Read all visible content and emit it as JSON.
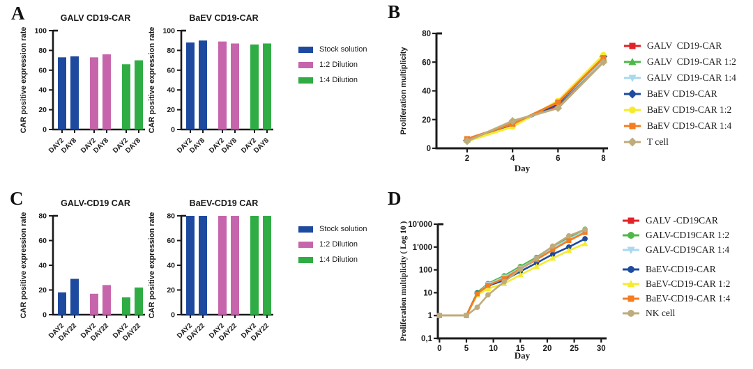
{
  "figure": {
    "background": "#ffffff",
    "axis_color": "#1a1a1a"
  },
  "panels": {
    "a": {
      "label": "A"
    },
    "b": {
      "label": "B"
    },
    "c": {
      "label": "C"
    },
    "d": {
      "label": "D"
    }
  },
  "legends": {
    "a": [
      {
        "label": "Stock solution",
        "color": "#1d4a9f"
      },
      {
        "label": "1:2 Dilution",
        "color": "#c765ac"
      },
      {
        "label": "1:4 Dilution",
        "color": "#2fad44"
      }
    ],
    "c": [
      {
        "label": "Stock solution",
        "color": "#1d4a9f"
      },
      {
        "label": "1:2 Dilution",
        "color": "#c765ac"
      },
      {
        "label": "1:4 Dilution",
        "color": "#2fad44"
      }
    ],
    "b": [
      {
        "label": "GALV  CD19-CAR",
        "color": "#e12228",
        "marker": "square"
      },
      {
        "label": "GALV  CD19-CAR 1:2",
        "color": "#4db848",
        "marker": "triangle-up"
      },
      {
        "label": "GALV  CD19-CAR 1:4",
        "color": "#a8d9ec",
        "marker": "triangle-down"
      },
      {
        "label": "BaEV CD19-CAR",
        "color": "#1d4ba0",
        "marker": "diamond"
      },
      {
        "label": "BaEV CD19-CAR 1:2",
        "color": "#f5eb2e",
        "marker": "circle"
      },
      {
        "label": "BaEV CD19-CAR 1:4",
        "color": "#f47d20",
        "marker": "square"
      },
      {
        "label": "T cell",
        "color": "#beac7d",
        "marker": "diamond"
      }
    ],
    "d": [
      {
        "label": "GALV -CD19CAR",
        "color": "#e12228",
        "marker": "square",
        "group_gap": false
      },
      {
        "label": "GALV-CD19CAR 1:2",
        "color": "#4db848",
        "marker": "circle",
        "group_gap": false
      },
      {
        "label": "GALV-CD19CAR 1:4",
        "color": "#a8d9ec",
        "marker": "triangle-down",
        "group_gap": false
      },
      {
        "label": "BaEV-CD19-CAR",
        "color": "#1d4ba0",
        "marker": "circle",
        "group_gap": true
      },
      {
        "label": "BaEV-CD19-CAR 1:2",
        "color": "#f5eb2e",
        "marker": "triangle-up",
        "group_gap": false
      },
      {
        "label": "BaEV-CD19-CAR 1:4",
        "color": "#f47d20",
        "marker": "square",
        "group_gap": false
      },
      {
        "label": "NK cell",
        "color": "#beac7d",
        "marker": "circle",
        "group_gap": false
      }
    ]
  },
  "chart_data": [
    {
      "id": "a1",
      "type": "bar",
      "title": "GALV CD19-CAR",
      "ylabel": "CAR positive expression rate",
      "ylim": [
        0,
        100
      ],
      "yticks": [
        0,
        20,
        40,
        60,
        80,
        100
      ],
      "categories": [
        "DAY2",
        "DAY8"
      ],
      "series": [
        {
          "name": "Stock solution",
          "color": "#1d4a9f",
          "values": [
            73,
            74
          ]
        },
        {
          "name": "1:2 Dilution",
          "color": "#c765ac",
          "values": [
            73,
            76
          ]
        },
        {
          "name": "1:4 Dilution",
          "color": "#2fad44",
          "values": [
            66,
            70
          ]
        }
      ]
    },
    {
      "id": "a2",
      "type": "bar",
      "title": "BaEV CD19-CAR",
      "ylabel": "CAR positive expression rate",
      "ylim": [
        0,
        100
      ],
      "yticks": [
        0,
        20,
        40,
        60,
        80,
        100
      ],
      "categories": [
        "DAY2",
        "DAY8"
      ],
      "series": [
        {
          "name": "Stock solution",
          "color": "#1d4a9f",
          "values": [
            88,
            90
          ]
        },
        {
          "name": "1:2 Dilution",
          "color": "#c765ac",
          "values": [
            89,
            87
          ]
        },
        {
          "name": "1:4 Dilution",
          "color": "#2fad44",
          "values": [
            86,
            87
          ]
        }
      ]
    },
    {
      "id": "b",
      "type": "line",
      "title": "",
      "xlabel": "Day",
      "ylabel": "Proliferation multiplicity",
      "xlim": [
        0.65,
        8.2
      ],
      "xticks": [
        2,
        4,
        6,
        8
      ],
      "ylim": [
        0,
        80
      ],
      "yticks": [
        0,
        20,
        40,
        60,
        80
      ],
      "x": [
        2,
        4,
        6,
        8
      ],
      "series": [
        {
          "name": "GALV  CD19-CAR",
          "color": "#e12228",
          "marker": "square",
          "values": [
            6.5,
            17,
            30,
            62
          ]
        },
        {
          "name": "GALV  CD19-CAR 1:2",
          "color": "#4db848",
          "marker": "triangle-up",
          "values": [
            6,
            17.5,
            31,
            63
          ]
        },
        {
          "name": "GALV  CD19-CAR 1:4",
          "color": "#a8d9ec",
          "marker": "triangle-down",
          "values": [
            6,
            17,
            31,
            62
          ]
        },
        {
          "name": "BaEV CD19-CAR",
          "color": "#1d4ba0",
          "marker": "diamond",
          "values": [
            5.5,
            16,
            31,
            64
          ]
        },
        {
          "name": "BaEV CD19-CAR 1:2",
          "color": "#f5eb2e",
          "marker": "circle",
          "values": [
            5,
            15,
            33,
            65
          ]
        },
        {
          "name": "BaEV CD19-CAR 1:4",
          "color": "#f47d20",
          "marker": "square",
          "values": [
            6.5,
            17,
            32,
            63
          ]
        },
        {
          "name": "T cell",
          "color": "#beac7d",
          "marker": "diamond",
          "values": [
            5,
            19,
            28,
            60
          ]
        }
      ]
    },
    {
      "id": "c1",
      "type": "bar",
      "title": "GALV-CD19 CAR",
      "ylabel": "CAR positive expression rate",
      "ylim": [
        0,
        80
      ],
      "yticks": [
        0,
        20,
        40,
        60,
        80
      ],
      "categories": [
        "DAY2",
        "DAY22"
      ],
      "series": [
        {
          "name": "Stock solution",
          "color": "#1d4a9f",
          "values": [
            18,
            29
          ]
        },
        {
          "name": "1:2 Dilution",
          "color": "#c765ac",
          "values": [
            17,
            24
          ]
        },
        {
          "name": "1:4 Dilution",
          "color": "#2fad44",
          "values": [
            14,
            22
          ]
        }
      ]
    },
    {
      "id": "c2",
      "type": "bar",
      "title": "BaEV-CD19 CAR",
      "ylabel": "CAR positive expression rate",
      "ylim": [
        0,
        80
      ],
      "yticks": [
        0,
        20,
        40,
        60,
        80
      ],
      "categories": [
        "DAY2",
        "DAY22"
      ],
      "series": [
        {
          "name": "Stock solution",
          "color": "#1d4a9f",
          "values": [
            80,
            80
          ]
        },
        {
          "name": "1:2 Dilution",
          "color": "#c765ac",
          "values": [
            80,
            80
          ]
        },
        {
          "name": "1:4 Dilution",
          "color": "#2fad44",
          "values": [
            80,
            80
          ]
        }
      ]
    },
    {
      "id": "d",
      "type": "line",
      "log_y": true,
      "title": "",
      "xlabel": "Day",
      "ylabel": "Proliferation multiplicity  ( Log 10 )",
      "xlim": [
        -0.3,
        31
      ],
      "xticks": [
        0,
        5,
        10,
        15,
        20,
        25,
        30
      ],
      "ylim": [
        0.1,
        10000
      ],
      "yticks": [
        0.1,
        1,
        10,
        100,
        1000,
        10000
      ],
      "ytick_labels": [
        "0,1",
        "1",
        "10",
        "100",
        "1'000",
        "10'000"
      ],
      "x": [
        0,
        5,
        7,
        9,
        12,
        15,
        18,
        21,
        24,
        27
      ],
      "series": [
        {
          "name": "GALV -CD19CAR",
          "color": "#e12228",
          "marker": "square",
          "values": [
            1,
            1,
            9,
            22,
            45,
            115,
            300,
            850,
            2100,
            4800
          ]
        },
        {
          "name": "GALV-CD19CAR 1:2",
          "color": "#4db848",
          "marker": "circle",
          "values": [
            1,
            1,
            10,
            25,
            55,
            140,
            350,
            1050,
            2500,
            6000
          ]
        },
        {
          "name": "GALV-CD19CAR 1:4",
          "color": "#a8d9ec",
          "marker": "triangle-down",
          "values": [
            1,
            1,
            9,
            23,
            48,
            120,
            310,
            900,
            2200,
            5000
          ]
        },
        {
          "name": "BaEV-CD19-CAR",
          "color": "#1d4ba0",
          "marker": "circle",
          "values": [
            1,
            1,
            9.5,
            20,
            35,
            85,
            200,
            480,
            1000,
            2300
          ]
        },
        {
          "name": "BaEV-CD19-CAR 1:2",
          "color": "#f5eb2e",
          "marker": "triangle-up",
          "values": [
            1,
            1,
            8,
            15,
            25,
            60,
            140,
            320,
            700,
            1400
          ]
        },
        {
          "name": "BaEV-CD19-CAR 1:4",
          "color": "#f47d20",
          "marker": "square",
          "values": [
            1,
            1,
            9,
            21,
            42,
            110,
            280,
            750,
            1900,
            4300
          ]
        },
        {
          "name": "NK cell",
          "color": "#beac7d",
          "marker": "circle",
          "values": [
            1,
            1,
            2.3,
            8,
            30,
            105,
            320,
            1100,
            3100,
            5800
          ]
        }
      ]
    }
  ]
}
